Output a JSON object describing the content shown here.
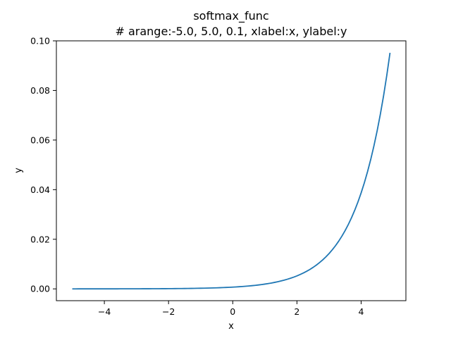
{
  "chart_data": {
    "type": "line",
    "title": "softmax_func",
    "subtitle": "# arange:-5.0, 5.0, 0.1, xlabel:x, ylabel:y",
    "xlabel": "x",
    "ylabel": "y",
    "xlim": [
      -5.495,
      5.395
    ],
    "ylim": [
      -0.00476,
      0.1
    ],
    "x_ticks": [
      -4,
      -2,
      0,
      2,
      4
    ],
    "x_tick_labels": [
      "−4",
      "−2",
      "0",
      "2",
      "4"
    ],
    "y_ticks": [
      0.0,
      0.02,
      0.04,
      0.06,
      0.08,
      0.1
    ],
    "y_tick_labels": [
      "0.00",
      "0.02",
      "0.04",
      "0.06",
      "0.08",
      "0.10"
    ],
    "grid": false,
    "series": [
      {
        "color": "#1f77b4",
        "x_range": {
          "start": -5.0,
          "stop": 5.0,
          "step": 0.1
        },
        "function": "softmax(x)"
      }
    ]
  },
  "colors": {
    "line": "#1f77b4",
    "axes": "#000000",
    "background": "#ffffff"
  }
}
